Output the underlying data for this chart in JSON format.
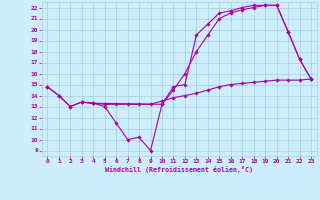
{
  "xlabel": "Windchill (Refroidissement éolien,°C)",
  "bg_color": "#cceeff",
  "grid_color": "#aaccdd",
  "line_color": "#aa00aa",
  "xlim": [
    -0.5,
    23.5
  ],
  "ylim": [
    8.5,
    22.5
  ],
  "xticks": [
    0,
    1,
    2,
    3,
    4,
    5,
    6,
    7,
    8,
    9,
    10,
    11,
    12,
    13,
    14,
    15,
    16,
    17,
    18,
    19,
    20,
    21,
    22,
    23
  ],
  "yticks": [
    9,
    10,
    11,
    12,
    13,
    14,
    15,
    16,
    17,
    18,
    19,
    20,
    21,
    22
  ],
  "line1_x": [
    0,
    1,
    2,
    3,
    4,
    5,
    6,
    7,
    8,
    9,
    10,
    11,
    12,
    13,
    14,
    15,
    16,
    17,
    18,
    19,
    20,
    21,
    22,
    23
  ],
  "line1_y": [
    14.8,
    14.0,
    13.0,
    13.4,
    13.3,
    13.0,
    11.5,
    10.0,
    10.2,
    9.0,
    13.2,
    14.8,
    15.0,
    19.5,
    20.5,
    21.5,
    21.7,
    22.0,
    22.2,
    22.2,
    22.2,
    19.8,
    17.3,
    15.5
  ],
  "line2_x": [
    0,
    1,
    2,
    3,
    4,
    5,
    6,
    7,
    8,
    9,
    10,
    11,
    12,
    13,
    14,
    15,
    16,
    17,
    18,
    19,
    20,
    21,
    22,
    23
  ],
  "line2_y": [
    14.8,
    14.0,
    13.0,
    13.4,
    13.3,
    13.2,
    13.2,
    13.2,
    13.2,
    13.2,
    13.5,
    13.8,
    14.0,
    14.2,
    14.5,
    14.8,
    15.0,
    15.1,
    15.2,
    15.3,
    15.4,
    15.4,
    15.4,
    15.5
  ],
  "line3_x": [
    3,
    4,
    10,
    11,
    12,
    13,
    14,
    15,
    16,
    17,
    18,
    19,
    20,
    21,
    22,
    23
  ],
  "line3_y": [
    13.4,
    13.3,
    13.2,
    14.5,
    16.0,
    18.0,
    19.5,
    21.0,
    21.5,
    21.8,
    22.0,
    22.2,
    22.2,
    19.8,
    17.3,
    15.5
  ]
}
